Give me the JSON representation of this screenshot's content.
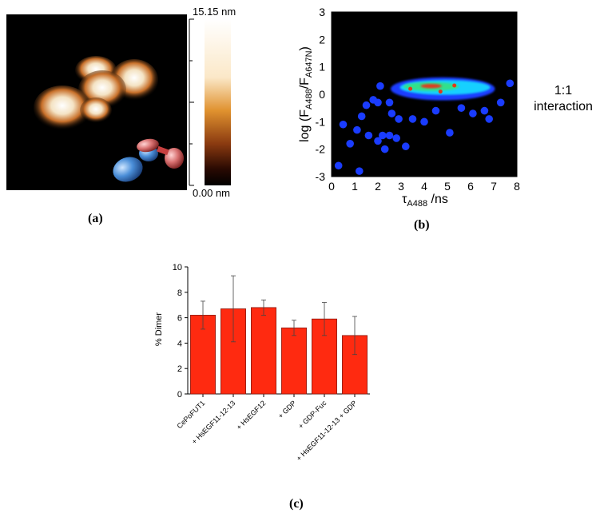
{
  "panel_a": {
    "caption": "(a)",
    "scale_max": "15.15 nm",
    "scale_min": "0.00 nm"
  },
  "panel_b": {
    "caption": "(b)",
    "annotation_line1": "1:1",
    "annotation_line2": "interaction"
  },
  "panel_c": {
    "caption": "(c)"
  },
  "chart_data": [
    {
      "type": "heatmap",
      "xlabel": "τA488 /ns",
      "ylabel": "log (FA488/FA647N)",
      "xlim": [
        0,
        8
      ],
      "ylim": [
        -3,
        3
      ],
      "xticks": [
        "0",
        "1",
        "2",
        "3",
        "4",
        "5",
        "6",
        "7",
        "8"
      ],
      "yticks": [
        "3",
        "2",
        "1",
        "0",
        "-1",
        "-2",
        "-3"
      ],
      "peak": {
        "x": 4.3,
        "y": 0.3
      },
      "colors": {
        "background": "#000000",
        "low": "#1a3cff",
        "mid": "#18d0ff",
        "high": "#33e08a",
        "peak": "#e03a1a"
      }
    },
    {
      "type": "bar",
      "ylabel": "% Dimer",
      "ylim": [
        0,
        10
      ],
      "yticks": [
        "0",
        "2",
        "4",
        "6",
        "8",
        "10"
      ],
      "categories": [
        "CePoFUT1",
        "+ HsEGF11-12-13",
        "+ HsEGF12",
        "+ GDP",
        "+ GDP-Fuc",
        "+ HsEGF11-12-13 + GDP"
      ],
      "values": [
        6.2,
        6.7,
        6.8,
        5.2,
        5.9,
        4.6
      ],
      "errors": [
        1.1,
        2.6,
        0.6,
        0.6,
        1.3,
        1.5
      ],
      "colors": {
        "bar": "#ff2a10",
        "edge": "#8a1a10"
      }
    }
  ]
}
